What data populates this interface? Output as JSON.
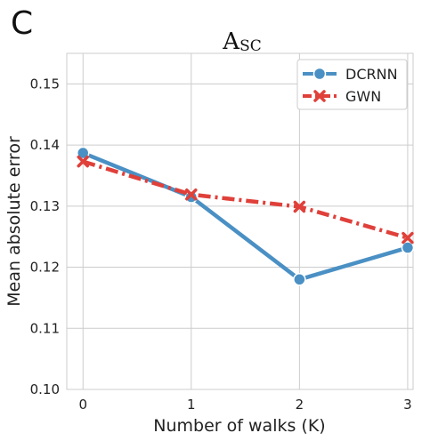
{
  "panel_label": "C",
  "chart_data": {
    "type": "line",
    "title_main": "A",
    "title_sub": "SC",
    "xlabel": "Number of walks (K)",
    "ylabel": "Mean absolute error",
    "x": [
      0,
      1,
      2,
      3
    ],
    "x_ticks": [
      "0",
      "1",
      "2",
      "3"
    ],
    "xlim": [
      -0.15,
      3.05
    ],
    "ylim": [
      0.1,
      0.155
    ],
    "y_ticks": [
      "0.10",
      "0.11",
      "0.12",
      "0.13",
      "0.14",
      "0.15"
    ],
    "grid": true,
    "legend_position": "top-right",
    "series": [
      {
        "name": "DCRNN",
        "values": [
          0.1387,
          0.1315,
          0.118,
          0.1232
        ],
        "color": "#4a90c4",
        "line_style": "solid",
        "marker": "circle"
      },
      {
        "name": "GWN",
        "values": [
          0.1373,
          0.1319,
          0.1299,
          0.1248
        ],
        "color": "#e0403a",
        "line_style": "dashdot",
        "marker": "x"
      }
    ]
  }
}
